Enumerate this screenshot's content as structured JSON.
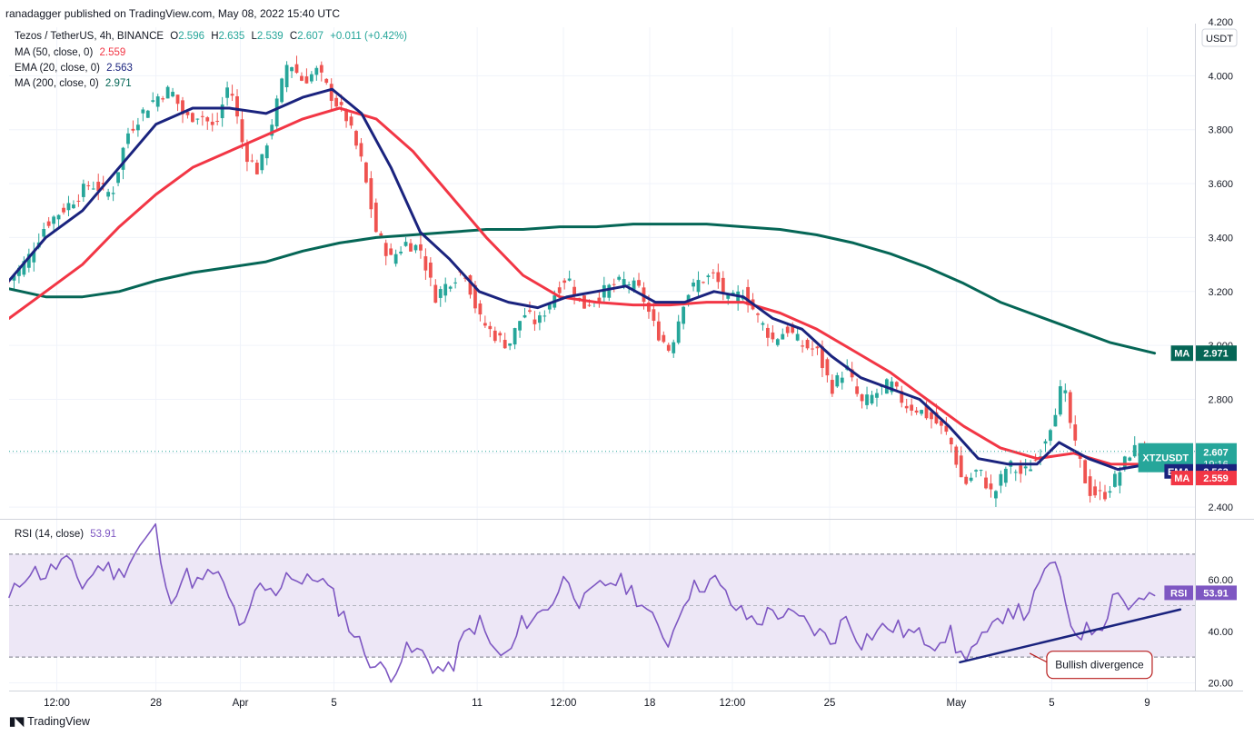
{
  "header": {
    "published": "ranadagger published on TradingView.com, May 08, 2022 15:40 UTC"
  },
  "legend": {
    "symbol": "Tezos / TetherUS, 4h, BINANCE",
    "o_label": "O",
    "o": "2.596",
    "h_label": "H",
    "h": "2.635",
    "l_label": "L",
    "l": "2.539",
    "c_label": "C",
    "c": "2.607",
    "change": "+0.011 (+0.42%)",
    "ma50": {
      "label": "MA (50, close, 0)",
      "value": "2.559"
    },
    "ema20": {
      "label": "EMA (20, close, 0)",
      "value": "2.563"
    },
    "ma200": {
      "label": "MA (200, close, 0)",
      "value": "2.971"
    },
    "rsi": {
      "label": "RSI (14, close)",
      "value": "53.91"
    }
  },
  "colors": {
    "up": "#26a69a",
    "down": "#ef5350",
    "ema": "#1a237e",
    "ma50": "#f23645",
    "ma200": "#056656",
    "rsi": "#7e57c2",
    "rsi_band": "#ede7f6",
    "annotation": "#b71c1c"
  },
  "footer": {
    "brand": "TradingView",
    "logo_icon": "tradingview-logo-icon"
  },
  "chart_data": [
    {
      "type": "candlestick",
      "title": "Tezos / TetherUS, 4h, BINANCE",
      "currency": "USDT",
      "ylim": [
        2.36,
        4.18
      ],
      "yticks": [
        "2.400",
        "2.600",
        "2.800",
        "3.000",
        "3.200",
        "3.400",
        "3.600",
        "3.800",
        "4.000",
        "4.200"
      ],
      "x_labels": [
        "12:00",
        "28",
        "Apr",
        "5",
        "11",
        "12:00",
        "18",
        "12:00",
        "25",
        "May",
        "5",
        "9"
      ],
      "x_label_positions": [
        1.3,
        4,
        6.3,
        8.85,
        12.75,
        15.1,
        17.45,
        19.7,
        22.35,
        25.8,
        28.4,
        31.0
      ],
      "close_path": [
        [
          0,
          3.24
        ],
        [
          0.5,
          3.32
        ],
        [
          1,
          3.45
        ],
        [
          1.6,
          3.52
        ],
        [
          2.2,
          3.6
        ],
        [
          2.8,
          3.56
        ],
        [
          3.2,
          3.78
        ],
        [
          3.6,
          3.86
        ],
        [
          4.0,
          3.92
        ],
        [
          4.4,
          3.95
        ],
        [
          4.8,
          3.84
        ],
        [
          5.2,
          3.86
        ],
        [
          5.6,
          3.8
        ],
        [
          6.0,
          3.98
        ],
        [
          6.4,
          3.72
        ],
        [
          6.8,
          3.64
        ],
        [
          7.2,
          3.85
        ],
        [
          7.6,
          4.06
        ],
        [
          8.0,
          3.98
        ],
        [
          8.4,
          4.02
        ],
        [
          8.8,
          3.92
        ],
        [
          9.2,
          3.84
        ],
        [
          9.6,
          3.68
        ],
        [
          10.0,
          3.42
        ],
        [
          10.4,
          3.32
        ],
        [
          10.8,
          3.38
        ],
        [
          11.2,
          3.36
        ],
        [
          11.6,
          3.18
        ],
        [
          12.0,
          3.24
        ],
        [
          12.4,
          3.28
        ],
        [
          12.8,
          3.1
        ],
        [
          13.2,
          3.04
        ],
        [
          13.6,
          3.0
        ],
        [
          14.0,
          3.12
        ],
        [
          14.4,
          3.08
        ],
        [
          14.8,
          3.18
        ],
        [
          15.2,
          3.26
        ],
        [
          15.6,
          3.14
        ],
        [
          16.0,
          3.18
        ],
        [
          16.4,
          3.22
        ],
        [
          16.8,
          3.24
        ],
        [
          17.2,
          3.2
        ],
        [
          17.6,
          3.06
        ],
        [
          18.0,
          2.98
        ],
        [
          18.4,
          3.18
        ],
        [
          18.8,
          3.24
        ],
        [
          19.2,
          3.26
        ],
        [
          19.6,
          3.16
        ],
        [
          20.0,
          3.2
        ],
        [
          20.4,
          3.1
        ],
        [
          20.8,
          3.02
        ],
        [
          21.2,
          3.06
        ],
        [
          21.6,
          3.0
        ],
        [
          22.0,
          2.98
        ],
        [
          22.4,
          2.84
        ],
        [
          22.8,
          2.92
        ],
        [
          23.2,
          2.78
        ],
        [
          23.6,
          2.82
        ],
        [
          24.0,
          2.86
        ],
        [
          24.4,
          2.78
        ],
        [
          24.8,
          2.76
        ],
        [
          25.2,
          2.72
        ],
        [
          25.6,
          2.66
        ],
        [
          26.0,
          2.48
        ],
        [
          26.4,
          2.54
        ],
        [
          26.8,
          2.44
        ],
        [
          27.2,
          2.56
        ],
        [
          27.6,
          2.52
        ],
        [
          28.0,
          2.58
        ],
        [
          28.4,
          2.72
        ],
        [
          28.7,
          2.86
        ],
        [
          29.0,
          2.64
        ],
        [
          29.4,
          2.46
        ],
        [
          29.8,
          2.44
        ],
        [
          30.2,
          2.52
        ],
        [
          30.6,
          2.62
        ],
        [
          31.0,
          2.58
        ],
        [
          31.2,
          2.607
        ]
      ],
      "ema20_path": [
        [
          0,
          3.24
        ],
        [
          1,
          3.4
        ],
        [
          2,
          3.5
        ],
        [
          3,
          3.66
        ],
        [
          4,
          3.82
        ],
        [
          5,
          3.88
        ],
        [
          6,
          3.88
        ],
        [
          7,
          3.86
        ],
        [
          8,
          3.92
        ],
        [
          8.8,
          3.95
        ],
        [
          9.6,
          3.86
        ],
        [
          10.4,
          3.66
        ],
        [
          11.2,
          3.42
        ],
        [
          12.0,
          3.32
        ],
        [
          12.8,
          3.2
        ],
        [
          13.6,
          3.16
        ],
        [
          14.4,
          3.14
        ],
        [
          15.2,
          3.18
        ],
        [
          16.0,
          3.2
        ],
        [
          16.8,
          3.22
        ],
        [
          17.6,
          3.16
        ],
        [
          18.4,
          3.16
        ],
        [
          19.2,
          3.2
        ],
        [
          20.0,
          3.18
        ],
        [
          20.8,
          3.1
        ],
        [
          21.6,
          3.06
        ],
        [
          22.4,
          2.96
        ],
        [
          23.2,
          2.88
        ],
        [
          24.0,
          2.84
        ],
        [
          24.8,
          2.8
        ],
        [
          25.6,
          2.7
        ],
        [
          26.4,
          2.58
        ],
        [
          27.2,
          2.56
        ],
        [
          28.0,
          2.56
        ],
        [
          28.6,
          2.64
        ],
        [
          29.4,
          2.58
        ],
        [
          30.2,
          2.54
        ],
        [
          31.2,
          2.563
        ]
      ],
      "ma50_path": [
        [
          0,
          3.1
        ],
        [
          1,
          3.2
        ],
        [
          2,
          3.3
        ],
        [
          3,
          3.44
        ],
        [
          4,
          3.56
        ],
        [
          5,
          3.66
        ],
        [
          6,
          3.72
        ],
        [
          7,
          3.78
        ],
        [
          8,
          3.84
        ],
        [
          9,
          3.88
        ],
        [
          10,
          3.84
        ],
        [
          11,
          3.72
        ],
        [
          12,
          3.56
        ],
        [
          13,
          3.4
        ],
        [
          14,
          3.26
        ],
        [
          15,
          3.18
        ],
        [
          16,
          3.16
        ],
        [
          17,
          3.15
        ],
        [
          18,
          3.15
        ],
        [
          19,
          3.16
        ],
        [
          20,
          3.16
        ],
        [
          21,
          3.12
        ],
        [
          22,
          3.06
        ],
        [
          23,
          2.98
        ],
        [
          24,
          2.9
        ],
        [
          25,
          2.8
        ],
        [
          26,
          2.7
        ],
        [
          27,
          2.62
        ],
        [
          28,
          2.58
        ],
        [
          29,
          2.6
        ],
        [
          30,
          2.56
        ],
        [
          31.2,
          2.559
        ]
      ],
      "ma200_path": [
        [
          0,
          3.21
        ],
        [
          1,
          3.18
        ],
        [
          2,
          3.18
        ],
        [
          3,
          3.2
        ],
        [
          4,
          3.24
        ],
        [
          5,
          3.27
        ],
        [
          6,
          3.29
        ],
        [
          7,
          3.31
        ],
        [
          8,
          3.35
        ],
        [
          9,
          3.38
        ],
        [
          10,
          3.4
        ],
        [
          11,
          3.41
        ],
        [
          12,
          3.42
        ],
        [
          13,
          3.43
        ],
        [
          14,
          3.43
        ],
        [
          15,
          3.44
        ],
        [
          16,
          3.44
        ],
        [
          17,
          3.45
        ],
        [
          18,
          3.45
        ],
        [
          19,
          3.45
        ],
        [
          20,
          3.44
        ],
        [
          21,
          3.43
        ],
        [
          22,
          3.41
        ],
        [
          23,
          3.38
        ],
        [
          24,
          3.34
        ],
        [
          25,
          3.29
        ],
        [
          26,
          3.23
        ],
        [
          27,
          3.16
        ],
        [
          28,
          3.11
        ],
        [
          29,
          3.06
        ],
        [
          30,
          3.01
        ],
        [
          31.2,
          2.971
        ]
      ],
      "price_labels": [
        {
          "name": "XTZUSDT",
          "value": "2.607",
          "sub": "19:16",
          "price": 2.607,
          "color": "#26a69a"
        },
        {
          "name": "EMA",
          "value": "2.563",
          "price": 2.563,
          "color": "#1a237e"
        },
        {
          "name": "MA",
          "value": "2.559",
          "price": 2.535,
          "color": "#f23645"
        },
        {
          "name": "MA",
          "value": "2.971",
          "price": 2.971,
          "color": "#056656"
        }
      ]
    },
    {
      "type": "line",
      "title": "RSI (14, close)",
      "ylim": [
        17,
        83
      ],
      "yticks": [
        "20.00",
        "40.00",
        "60.00"
      ],
      "bands": [
        30,
        70
      ],
      "middle": 50,
      "rsi_path": [
        [
          0,
          52
        ],
        [
          0.5,
          64
        ],
        [
          1,
          62
        ],
        [
          1.5,
          68
        ],
        [
          2,
          58
        ],
        [
          2.5,
          66
        ],
        [
          3,
          62
        ],
        [
          3.5,
          72
        ],
        [
          4.0,
          80
        ],
        [
          4.3,
          52
        ],
        [
          4.8,
          62
        ],
        [
          5.2,
          58
        ],
        [
          5.6,
          64
        ],
        [
          6.0,
          52
        ],
        [
          6.4,
          40
        ],
        [
          6.8,
          58
        ],
        [
          7.2,
          54
        ],
        [
          7.6,
          64
        ],
        [
          8.0,
          58
        ],
        [
          8.4,
          62
        ],
        [
          8.8,
          54
        ],
        [
          9.2,
          44
        ],
        [
          9.6,
          34
        ],
        [
          10.0,
          26
        ],
        [
          10.4,
          24
        ],
        [
          10.8,
          32
        ],
        [
          11.2,
          32
        ],
        [
          11.6,
          26
        ],
        [
          12.0,
          24
        ],
        [
          12.4,
          38
        ],
        [
          12.8,
          44
        ],
        [
          13.2,
          32
        ],
        [
          13.6,
          30
        ],
        [
          14.0,
          44
        ],
        [
          14.4,
          46
        ],
        [
          14.8,
          52
        ],
        [
          15.2,
          62
        ],
        [
          15.6,
          50
        ],
        [
          16.0,
          56
        ],
        [
          16.4,
          60
        ],
        [
          16.8,
          58
        ],
        [
          17.2,
          52
        ],
        [
          17.6,
          42
        ],
        [
          18.0,
          36
        ],
        [
          18.4,
          54
        ],
        [
          18.8,
          58
        ],
        [
          19.2,
          60
        ],
        [
          19.6,
          52
        ],
        [
          20.0,
          46
        ],
        [
          20.4,
          44
        ],
        [
          20.8,
          48
        ],
        [
          21.2,
          46
        ],
        [
          21.6,
          44
        ],
        [
          22.0,
          40
        ],
        [
          22.4,
          36
        ],
        [
          22.8,
          46
        ],
        [
          23.2,
          36
        ],
        [
          23.6,
          40
        ],
        [
          24.0,
          42
        ],
        [
          24.4,
          40
        ],
        [
          24.8,
          38
        ],
        [
          25.2,
          36
        ],
        [
          25.6,
          40
        ],
        [
          25.9,
          30
        ],
        [
          26.3,
          34
        ],
        [
          26.8,
          40
        ],
        [
          27.2,
          50
        ],
        [
          27.6,
          46
        ],
        [
          28.0,
          54
        ],
        [
          28.4,
          70
        ],
        [
          28.7,
          54
        ],
        [
          29.0,
          40
        ],
        [
          29.4,
          40
        ],
        [
          29.8,
          44
        ],
        [
          30.2,
          58
        ],
        [
          30.5,
          48
        ],
        [
          30.8,
          54
        ],
        [
          31.2,
          53.91
        ]
      ],
      "bullish_line": [
        [
          25.9,
          28
        ],
        [
          31.9,
          48.5
        ]
      ],
      "annotation": {
        "text": "Bullish divergence",
        "x": 29.7,
        "y": 27,
        "arrow_to": [
          27.8,
          31.5
        ]
      },
      "price_labels": [
        {
          "name": "RSI",
          "value": "53.91",
          "value_num": 53.91,
          "color": "#7e57c2"
        }
      ]
    }
  ]
}
